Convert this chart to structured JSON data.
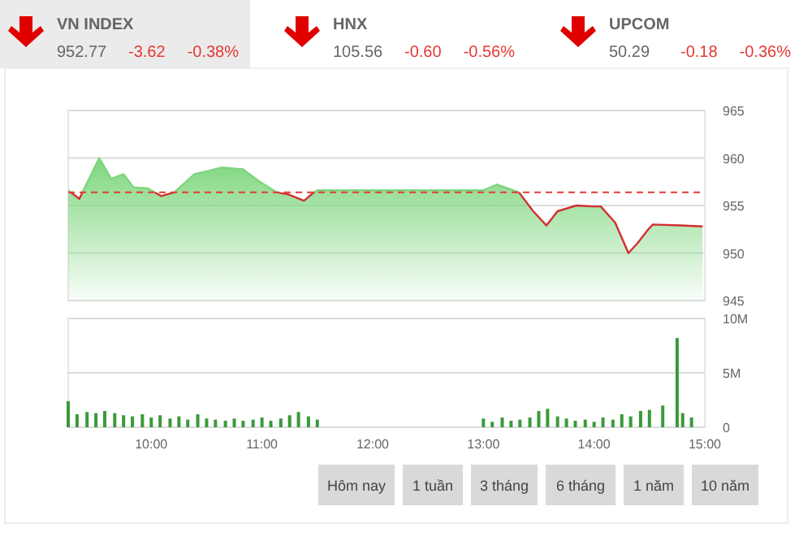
{
  "chart_data": [
    {
      "type": "other",
      "annotations": [
        "VN INDEX",
        "952.77",
        "-3.62",
        "-0.38%",
        "HNX",
        "105.56",
        "-0.60",
        "-0.56%",
        "UPCOM",
        "50.29",
        "-0.18",
        "-0.36%"
      ]
    },
    {
      "type": "area",
      "xlim": [
        9.25,
        15
      ],
      "ylim": [
        945,
        965
      ],
      "yticks": [
        945,
        950,
        955,
        960,
        965
      ],
      "grid": "y",
      "tick_labels": "y",
      "x": [
        9.25,
        9.35,
        9.53,
        9.64,
        9.75,
        9.84,
        9.97,
        10.09,
        10.21,
        10.39,
        10.64,
        10.83,
        10.98,
        11.13,
        11.23,
        11.38,
        11.47,
        11.5,
        13.0,
        13.12,
        13.32,
        13.45,
        13.57,
        13.67,
        13.84,
        13.99,
        14.06,
        14.19,
        14.31,
        14.39,
        14.49,
        14.53,
        14.78,
        14.98
      ],
      "series": [
        {
          "color": "#7ed67e",
          "values": [
            956.6,
            955.7,
            960,
            957.8,
            958.3,
            956.9,
            956.8,
            956,
            956.4,
            958.3,
            959,
            958.8,
            957.5,
            956.4,
            956.2,
            955.5,
            956.4,
            956.6,
            956.6,
            957.2,
            956.4,
            954.4,
            952.9,
            954.4,
            955,
            954.9,
            954.9,
            953.2,
            950,
            951,
            952.5,
            953,
            952.9,
            952.8
          ]
        }
      ],
      "ref_lines": [
        {
          "axis": "y",
          "value": 956.39,
          "color": "#e53935",
          "line_style": "dashed"
        }
      ]
    },
    {
      "type": "bar",
      "xlim": [
        9.25,
        15
      ],
      "ylim": [
        0,
        10000000
      ],
      "yticks": [
        {
          "value": 0,
          "label": "0"
        },
        {
          "value": 5000000,
          "label": "5M"
        },
        {
          "value": 10000000,
          "label": "10M"
        }
      ],
      "xticks": [
        {
          "value": 10,
          "label": "10:00"
        },
        {
          "value": 11,
          "label": "11:00"
        },
        {
          "value": 12,
          "label": "12:00"
        },
        {
          "value": 13,
          "label": "13:00"
        },
        {
          "value": 14,
          "label": "14:00"
        },
        {
          "value": 15,
          "label": "15:00"
        }
      ],
      "grid": "y",
      "x": [
        9.25,
        9.33,
        9.42,
        9.5,
        9.58,
        9.67,
        9.75,
        9.83,
        9.92,
        10.0,
        10.08,
        10.17,
        10.25,
        10.33,
        10.42,
        10.5,
        10.58,
        10.67,
        10.75,
        10.83,
        10.92,
        11.0,
        11.08,
        11.17,
        11.25,
        11.33,
        11.42,
        11.5,
        13.0,
        13.08,
        13.17,
        13.25,
        13.33,
        13.42,
        13.5,
        13.58,
        13.67,
        13.75,
        13.83,
        13.92,
        14.0,
        14.08,
        14.17,
        14.25,
        14.33,
        14.42,
        14.5,
        14.62,
        14.75,
        14.8,
        14.88
      ],
      "series": [
        {
          "color": "#3a9a3a",
          "values": [
            2400000,
            1200000,
            1400000,
            1300000,
            1500000,
            1300000,
            1100000,
            1000000,
            1200000,
            900000,
            1100000,
            800000,
            1000000,
            700000,
            1200000,
            800000,
            700000,
            600000,
            800000,
            600000,
            700000,
            900000,
            600000,
            800000,
            1100000,
            1400000,
            1000000,
            700000,
            800000,
            500000,
            900000,
            600000,
            700000,
            900000,
            1500000,
            1700000,
            1000000,
            800000,
            600000,
            700000,
            500000,
            900000,
            700000,
            1200000,
            1000000,
            1500000,
            1600000,
            2000000,
            8200000,
            1300000,
            900000
          ]
        }
      ]
    },
    {
      "type": "other",
      "annotations": [
        "Hôm nay",
        "1 tuần",
        "3 tháng",
        "6 tháng",
        "1 năm",
        "10 năm"
      ]
    }
  ]
}
